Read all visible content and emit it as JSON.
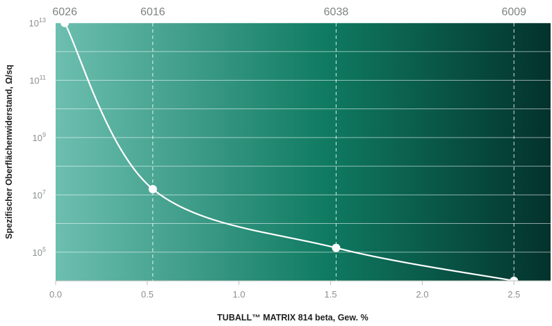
{
  "chart_data": {
    "type": "line",
    "title": "",
    "xlabel": "TUBALL™ MATRIX 814 beta, Gew. %",
    "ylabel": "Spezifischer Oberflächenwiderstand, Ω/sq",
    "y_scale": "log",
    "xlim": [
      0.0,
      2.7
    ],
    "ylim_log10": [
      4,
      13
    ],
    "x_ticks": [
      0.0,
      0.5,
      1.0,
      1.5,
      2.0,
      2.5
    ],
    "x_tick_labels": [
      "0.0",
      "0.5",
      "1.0",
      "1.5",
      "2.0",
      "2.5"
    ],
    "y_tick_labels": [
      {
        "base": "10",
        "exp": "13",
        "log10": 13
      },
      {
        "base": "10",
        "exp": "11",
        "log10": 11
      },
      {
        "base": "10",
        "exp": "9",
        "log10": 9
      },
      {
        "base": "10",
        "exp": "7",
        "log10": 7
      },
      {
        "base": "10",
        "exp": "5",
        "log10": 5
      }
    ],
    "grid": "horizontal",
    "series": [
      {
        "points": [
          {
            "x": 0.05,
            "log10_y": 13.0,
            "label": "6026"
          },
          {
            "x": 0.53,
            "log10_y": 7.2,
            "label": "6016"
          },
          {
            "x": 1.53,
            "log10_y": 5.15,
            "label": "6038"
          },
          {
            "x": 2.5,
            "log10_y": 4.0,
            "label": "6009"
          }
        ]
      }
    ],
    "colors": {
      "gradient_start": "#6dbfb0",
      "gradient_mid": "#0f7a61",
      "gradient_end": "#03322c",
      "line": "#ffffff",
      "gridline": "#ffffff"
    }
  }
}
